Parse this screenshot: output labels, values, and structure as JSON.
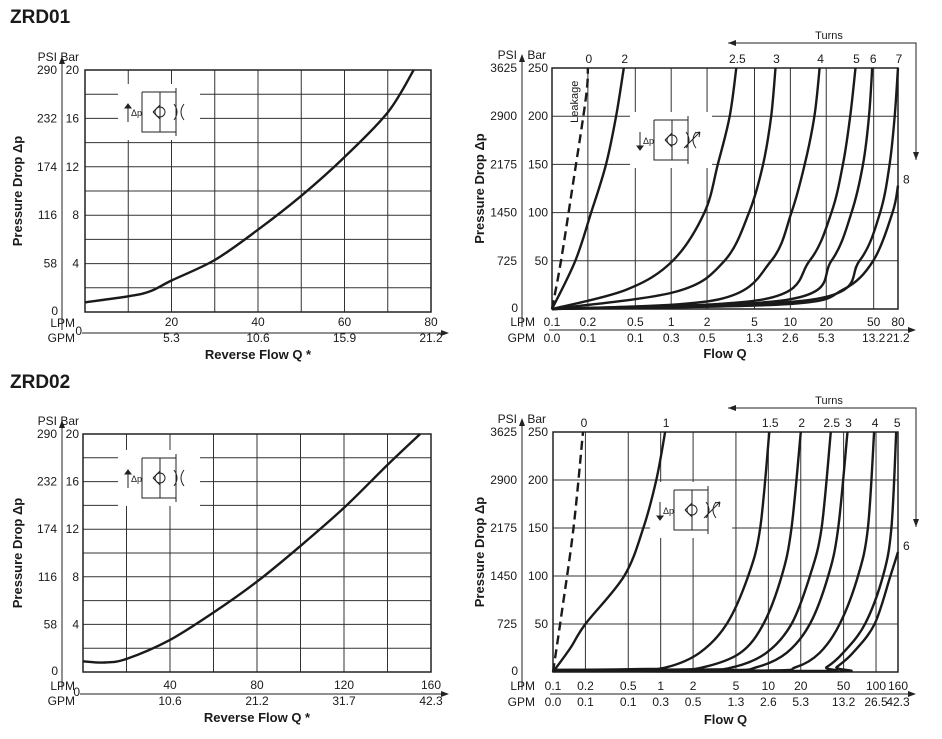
{
  "sections": [
    {
      "title": "ZRD01"
    },
    {
      "title": "ZRD02"
    }
  ],
  "chart_data": [
    {
      "type": "line",
      "section": "ZRD01",
      "xlabel": "Reverse Flow Q *",
      "ylabel": "Pressure Drop Δp",
      "x_unit_primary": "LPM",
      "x_unit_secondary": "GPM",
      "y_unit_primary": "Bar",
      "y_unit_secondary": "PSI",
      "x_scale": "linear",
      "xlim": [
        0,
        80
      ],
      "ylim": [
        0,
        20
      ],
      "x_grid_step": 10,
      "y_grid_step": 2,
      "zero_label": "0",
      "x_ticks": [
        {
          "value": 20,
          "lpm": "20",
          "gpm": "5.3"
        },
        {
          "value": 40,
          "lpm": "40",
          "gpm": "10.6"
        },
        {
          "value": 60,
          "lpm": "60",
          "gpm": "15.9"
        },
        {
          "value": 80,
          "lpm": "80",
          "gpm": "21.2"
        }
      ],
      "y_ticks": [
        {
          "value": 4,
          "bar": "4",
          "psi": "58"
        },
        {
          "value": 8,
          "bar": "8",
          "psi": "116"
        },
        {
          "value": 12,
          "bar": "12",
          "psi": "174"
        },
        {
          "value": 16,
          "bar": "16",
          "psi": "232"
        },
        {
          "value": 20,
          "bar": "20",
          "psi": "290"
        }
      ],
      "symbol_label": "Δp",
      "series": [
        {
          "name": "Reverse flow",
          "label": "",
          "dashed": false,
          "points": [
            [
              0,
              0.8
            ],
            [
              10,
              1.3
            ],
            [
              15,
              1.7
            ],
            [
              20,
              2.6
            ],
            [
              30,
              4.3
            ],
            [
              40,
              6.8
            ],
            [
              50,
              9.6
            ],
            [
              60,
              12.8
            ],
            [
              70,
              16.5
            ],
            [
              76,
              20
            ]
          ]
        }
      ]
    },
    {
      "type": "line",
      "section": "ZRD01",
      "xlabel": "Flow Q",
      "ylabel": "Pressure Drop Δp",
      "x_unit_primary": "LPM",
      "x_unit_secondary": "GPM",
      "y_unit_primary": "Bar",
      "y_unit_secondary": "PSI",
      "x_scale": "log",
      "xlim": [
        0.1,
        80
      ],
      "ylim": [
        0,
        250
      ],
      "x_grid": [
        0.1,
        0.2,
        0.5,
        1,
        2,
        5,
        10,
        20,
        50,
        80
      ],
      "y_grid_step": 50,
      "zero_label": "0",
      "turns_label": "Turns",
      "leakage_label": "Leakage",
      "x_ticks": [
        {
          "value": 0.1,
          "lpm": "0.1",
          "gpm": "0.0"
        },
        {
          "value": 0.2,
          "lpm": "0.2",
          "gpm": "0.1"
        },
        {
          "value": 0.5,
          "lpm": "0.5",
          "gpm": "0.1"
        },
        {
          "value": 1,
          "lpm": "1",
          "gpm": "0.3"
        },
        {
          "value": 2,
          "lpm": "2",
          "gpm": "0.5"
        },
        {
          "value": 5,
          "lpm": "5",
          "gpm": "1.3"
        },
        {
          "value": 10,
          "lpm": "10",
          "gpm": "2.6"
        },
        {
          "value": 20,
          "lpm": "20",
          "gpm": "5.3"
        },
        {
          "value": 50,
          "lpm": "50",
          "gpm": "13.2"
        },
        {
          "value": 80,
          "lpm": "80",
          "gpm": "21.2"
        }
      ],
      "y_ticks": [
        {
          "value": 50,
          "bar": "50",
          "psi": "725"
        },
        {
          "value": 100,
          "bar": "100",
          "psi": "1450"
        },
        {
          "value": 150,
          "bar": "150",
          "psi": "2175"
        },
        {
          "value": 200,
          "bar": "200",
          "psi": "2900"
        },
        {
          "value": 250,
          "bar": "250",
          "psi": "3625"
        }
      ],
      "symbol_label": "Δp",
      "series": [
        {
          "name": "0 turns (leakage)",
          "label": "0",
          "dashed": true,
          "points": [
            [
              0.1,
              0
            ],
            [
              0.119,
              50
            ],
            [
              0.15,
              130
            ],
            [
              0.193,
              220
            ],
            [
              0.2,
              250
            ]
          ]
        },
        {
          "name": "2 turns",
          "label": "2",
          "dashed": false,
          "points": [
            [
              0.1,
              0
            ],
            [
              0.157,
              50
            ],
            [
              0.213,
              100
            ],
            [
              0.284,
              150
            ],
            [
              0.345,
              200
            ],
            [
              0.4,
              250
            ]
          ]
        },
        {
          "name": "2.5 turns",
          "label": "2.5",
          "dashed": false,
          "points": [
            [
              0.1,
              0
            ],
            [
              0.42,
              20
            ],
            [
              1.03,
              50
            ],
            [
              1.9,
              100
            ],
            [
              2.46,
              150
            ],
            [
              3.1,
              200
            ],
            [
              3.52,
              250
            ]
          ]
        },
        {
          "name": "3 turns",
          "label": "3",
          "dashed": false,
          "points": [
            [
              0.1,
              0
            ],
            [
              1.1,
              18
            ],
            [
              2.8,
              50
            ],
            [
              4.5,
              100
            ],
            [
              5.9,
              150
            ],
            [
              6.9,
              200
            ],
            [
              7.5,
              250
            ]
          ]
        },
        {
          "name": "4 turns",
          "label": "4",
          "dashed": false,
          "points": [
            [
              0.1,
              0
            ],
            [
              2.5,
              10
            ],
            [
              6.9,
              50
            ],
            [
              10.2,
              100
            ],
            [
              13.2,
              150
            ],
            [
              15.9,
              200
            ],
            [
              17.6,
              250
            ]
          ]
        },
        {
          "name": "5 turns",
          "label": "5",
          "dashed": false,
          "points": [
            [
              0.1,
              0
            ],
            [
              5.9,
              10
            ],
            [
              14.5,
              50
            ],
            [
              22.1,
              100
            ],
            [
              27.6,
              150
            ],
            [
              31.8,
              200
            ],
            [
              35.2,
              250
            ]
          ]
        },
        {
          "name": "6 turns",
          "label": "6",
          "dashed": false,
          "points": [
            [
              0.1,
              0
            ],
            [
              9.8,
              10
            ],
            [
              22.1,
              50
            ],
            [
              32.6,
              100
            ],
            [
              40.7,
              150
            ],
            [
              45.7,
              200
            ],
            [
              48.6,
              250
            ]
          ]
        },
        {
          "name": "7 turns",
          "label": "7",
          "dashed": false,
          "points": [
            [
              0.1,
              0
            ],
            [
              15.5,
              10
            ],
            [
              38,
              50
            ],
            [
              56.6,
              100
            ],
            [
              68,
              150
            ],
            [
              75,
              200
            ],
            [
              80,
              250
            ]
          ]
        },
        {
          "name": "8 turns",
          "label": "8",
          "dashed": false,
          "label_side": "right",
          "points": [
            [
              0.1,
              0
            ],
            [
              9.3,
              5
            ],
            [
              27.6,
              20
            ],
            [
              49.5,
              50
            ],
            [
              72,
              100
            ],
            [
              80,
              128
            ]
          ]
        }
      ]
    },
    {
      "type": "line",
      "section": "ZRD02",
      "xlabel": "Reverse Flow Q *",
      "ylabel": "Pressure Drop Δp",
      "x_unit_primary": "LPM",
      "x_unit_secondary": "GPM",
      "y_unit_primary": "Bar",
      "y_unit_secondary": "PSI",
      "x_scale": "linear",
      "xlim": [
        0,
        160
      ],
      "ylim": [
        0,
        20
      ],
      "x_grid_step": 20,
      "y_grid_step": 2,
      "zero_label": "0",
      "x_ticks": [
        {
          "value": 40,
          "lpm": "40",
          "gpm": "10.6"
        },
        {
          "value": 80,
          "lpm": "80",
          "gpm": "21.2"
        },
        {
          "value": 120,
          "lpm": "120",
          "gpm": "31.7"
        },
        {
          "value": 160,
          "lpm": "160",
          "gpm": "42.3"
        }
      ],
      "y_ticks": [
        {
          "value": 4,
          "bar": "4",
          "psi": "58"
        },
        {
          "value": 8,
          "bar": "8",
          "psi": "116"
        },
        {
          "value": 12,
          "bar": "12",
          "psi": "174"
        },
        {
          "value": 16,
          "bar": "16",
          "psi": "232"
        },
        {
          "value": 20,
          "bar": "20",
          "psi": "290"
        }
      ],
      "symbol_label": "Δp",
      "series": [
        {
          "name": "Reverse flow",
          "label": "",
          "dashed": false,
          "points": [
            [
              0,
              0.9
            ],
            [
              10,
              0.8
            ],
            [
              20,
              1.1
            ],
            [
              40,
              2.7
            ],
            [
              60,
              5
            ],
            [
              80,
              7.6
            ],
            [
              100,
              10.6
            ],
            [
              120,
              13.8
            ],
            [
              140,
              17.4
            ],
            [
              155,
              20
            ]
          ]
        }
      ]
    },
    {
      "type": "line",
      "section": "ZRD02",
      "xlabel": "Flow Q",
      "ylabel": "Pressure Drop Δp",
      "x_unit_primary": "LPM",
      "x_unit_secondary": "GPM",
      "y_unit_primary": "Bar",
      "y_unit_secondary": "PSI",
      "x_scale": "log",
      "xlim": [
        0.1,
        160
      ],
      "ylim": [
        0,
        250
      ],
      "x_grid": [
        0.1,
        0.2,
        0.5,
        1,
        2,
        5,
        10,
        20,
        50,
        100,
        160
      ],
      "y_grid_step": 50,
      "zero_label": "0",
      "turns_label": "Turns",
      "x_ticks": [
        {
          "value": 0.1,
          "lpm": "0.1",
          "gpm": "0.0"
        },
        {
          "value": 0.2,
          "lpm": "0.2",
          "gpm": "0.1"
        },
        {
          "value": 0.5,
          "lpm": "0.5",
          "gpm": "0.1"
        },
        {
          "value": 1,
          "lpm": "1",
          "gpm": "0.3"
        },
        {
          "value": 2,
          "lpm": "2",
          "gpm": "0.5"
        },
        {
          "value": 5,
          "lpm": "5",
          "gpm": "1.3"
        },
        {
          "value": 10,
          "lpm": "10",
          "gpm": "2.6"
        },
        {
          "value": 20,
          "lpm": "20",
          "gpm": "5.3"
        },
        {
          "value": 50,
          "lpm": "50",
          "gpm": "13.2"
        },
        {
          "value": 100,
          "lpm": "100",
          "gpm": "26.5"
        },
        {
          "value": 160,
          "lpm": "160",
          "gpm": "42.3"
        }
      ],
      "y_ticks": [
        {
          "value": 50,
          "bar": "50",
          "psi": "725"
        },
        {
          "value": 100,
          "bar": "100",
          "psi": "1450"
        },
        {
          "value": 150,
          "bar": "150",
          "psi": "2175"
        },
        {
          "value": 200,
          "bar": "200",
          "psi": "2900"
        },
        {
          "value": 250,
          "bar": "250",
          "psi": "3625"
        }
      ],
      "symbol_label": "Δp",
      "series": [
        {
          "name": "0 turns",
          "label": "0",
          "dashed": true,
          "points": [
            [
              0.1,
              0
            ],
            [
              0.12,
              60
            ],
            [
              0.155,
              150
            ],
            [
              0.19,
              250
            ]
          ]
        },
        {
          "name": "1 turn",
          "label": "1",
          "dashed": false,
          "points": [
            [
              0.1,
              0
            ],
            [
              0.145,
              25
            ],
            [
              0.2,
              50
            ],
            [
              0.458,
              100
            ],
            [
              0.69,
              150
            ],
            [
              0.91,
              200
            ],
            [
              1.1,
              250
            ]
          ]
        },
        {
          "name": "1.5 turns",
          "label": "1.5",
          "dashed": false,
          "points": [
            [
              0.1,
              2
            ],
            [
              0.6,
              3
            ],
            [
              1.14,
              5
            ],
            [
              2.3,
              20
            ],
            [
              4.1,
              50
            ],
            [
              6.5,
              100
            ],
            [
              8.4,
              150
            ],
            [
              10.2,
              250
            ]
          ]
        },
        {
          "name": "2 turns",
          "label": "2",
          "dashed": false,
          "points": [
            [
              0.1,
              2
            ],
            [
              1.2,
              2.5
            ],
            [
              2.5,
              5
            ],
            [
              5.5,
              20
            ],
            [
              9,
              50
            ],
            [
              13.3,
              100
            ],
            [
              16.4,
              150
            ],
            [
              20,
              250
            ]
          ]
        },
        {
          "name": "2.5 turns",
          "label": "2.5",
          "dashed": false,
          "points": [
            [
              0.1,
              2
            ],
            [
              2.2,
              2.5
            ],
            [
              4.7,
              5
            ],
            [
              9.6,
              20
            ],
            [
              16.4,
              50
            ],
            [
              24.3,
              100
            ],
            [
              31.2,
              150
            ],
            [
              38,
              250
            ]
          ]
        },
        {
          "name": "3 turns",
          "label": "3",
          "dashed": false,
          "points": [
            [
              0.1,
              2
            ],
            [
              3.8,
              2
            ],
            [
              7.8,
              5
            ],
            [
              14.8,
              20
            ],
            [
              24.3,
              50
            ],
            [
              36,
              100
            ],
            [
              44.5,
              150
            ],
            [
              54.3,
              250
            ]
          ]
        },
        {
          "name": "4 turns",
          "label": "4",
          "dashed": false,
          "points": [
            [
              0.1,
              2
            ],
            [
              9,
              1.5
            ],
            [
              18,
              5
            ],
            [
              30,
              20
            ],
            [
              46,
              50
            ],
            [
              68,
              100
            ],
            [
              84,
              150
            ],
            [
              96,
              250
            ]
          ]
        },
        {
          "name": "5 turns",
          "label": "5",
          "dashed": false,
          "points": [
            [
              0.1,
              1.5
            ],
            [
              27,
              1
            ],
            [
              34.7,
              5
            ],
            [
              49.5,
              20
            ],
            [
              79,
              50
            ],
            [
              116,
              100
            ],
            [
              139,
              150
            ],
            [
              154,
              250
            ]
          ]
        },
        {
          "name": "6 turns",
          "label": "6",
          "dashed": false,
          "label_side": "right",
          "points": [
            [
              0.1,
              1
            ],
            [
              37,
              0.5
            ],
            [
              43,
              5
            ],
            [
              61,
              20
            ],
            [
              97,
              50
            ],
            [
              136,
              100
            ],
            [
              160,
              125
            ]
          ]
        }
      ]
    }
  ]
}
